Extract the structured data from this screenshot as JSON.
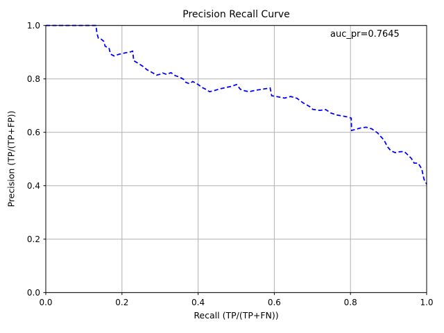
{
  "figure": {
    "background_color": "#ffffff",
    "spine_color": "#000000",
    "grid_color": "#b0b0b0",
    "text_color": "#000000"
  },
  "chart_data": {
    "type": "line",
    "title": "Precision Recall Curve",
    "xlabel": "Recall (TP/(TP+FN))",
    "ylabel": "Precision (TP/(TP+FP))",
    "annotation": "auc_pr=0.7645",
    "auc_pr": 0.7645,
    "xlim": [
      0.0,
      1.0
    ],
    "ylim": [
      0.0,
      1.0
    ],
    "xticks": [
      0.0,
      0.2,
      0.4,
      0.6,
      0.8,
      1.0
    ],
    "yticks": [
      0.0,
      0.2,
      0.4,
      0.6,
      0.8,
      1.0
    ],
    "xtick_labels": [
      "0.0",
      "0.2",
      "0.4",
      "0.6",
      "0.8",
      "1.0"
    ],
    "ytick_labels": [
      "0.0",
      "0.2",
      "0.4",
      "0.6",
      "0.8",
      "1.0"
    ],
    "grid": true,
    "legend": "none",
    "series": [
      {
        "name": "precision_recall",
        "color": "#0000ff",
        "linestyle": "dashed",
        "points": [
          [
            0.0,
            1.0
          ],
          [
            0.132,
            1.0
          ],
          [
            0.134,
            0.972
          ],
          [
            0.138,
            0.952
          ],
          [
            0.146,
            0.948
          ],
          [
            0.152,
            0.941
          ],
          [
            0.156,
            0.922
          ],
          [
            0.166,
            0.916
          ],
          [
            0.17,
            0.893
          ],
          [
            0.179,
            0.886
          ],
          [
            0.192,
            0.892
          ],
          [
            0.207,
            0.897
          ],
          [
            0.222,
            0.901
          ],
          [
            0.228,
            0.904
          ],
          [
            0.231,
            0.868
          ],
          [
            0.243,
            0.858
          ],
          [
            0.256,
            0.846
          ],
          [
            0.266,
            0.834
          ],
          [
            0.278,
            0.825
          ],
          [
            0.291,
            0.814
          ],
          [
            0.299,
            0.817
          ],
          [
            0.307,
            0.822
          ],
          [
            0.317,
            0.817
          ],
          [
            0.329,
            0.823
          ],
          [
            0.34,
            0.812
          ],
          [
            0.351,
            0.807
          ],
          [
            0.362,
            0.798
          ],
          [
            0.368,
            0.787
          ],
          [
            0.377,
            0.782
          ],
          [
            0.386,
            0.79
          ],
          [
            0.395,
            0.783
          ],
          [
            0.402,
            0.777
          ],
          [
            0.41,
            0.768
          ],
          [
            0.42,
            0.761
          ],
          [
            0.43,
            0.752
          ],
          [
            0.444,
            0.757
          ],
          [
            0.459,
            0.763
          ],
          [
            0.474,
            0.768
          ],
          [
            0.488,
            0.772
          ],
          [
            0.501,
            0.779
          ],
          [
            0.511,
            0.761
          ],
          [
            0.523,
            0.755
          ],
          [
            0.534,
            0.752
          ],
          [
            0.549,
            0.757
          ],
          [
            0.563,
            0.76
          ],
          [
            0.577,
            0.763
          ],
          [
            0.589,
            0.766
          ],
          [
            0.593,
            0.737
          ],
          [
            0.609,
            0.733
          ],
          [
            0.627,
            0.728
          ],
          [
            0.643,
            0.734
          ],
          [
            0.66,
            0.727
          ],
          [
            0.668,
            0.718
          ],
          [
            0.676,
            0.71
          ],
          [
            0.686,
            0.702
          ],
          [
            0.694,
            0.695
          ],
          [
            0.701,
            0.686
          ],
          [
            0.719,
            0.682
          ],
          [
            0.735,
            0.685
          ],
          [
            0.749,
            0.672
          ],
          [
            0.764,
            0.665
          ],
          [
            0.779,
            0.661
          ],
          [
            0.794,
            0.657
          ],
          [
            0.802,
            0.653
          ],
          [
            0.803,
            0.607
          ],
          [
            0.812,
            0.61
          ],
          [
            0.826,
            0.616
          ],
          [
            0.841,
            0.619
          ],
          [
            0.856,
            0.613
          ],
          [
            0.871,
            0.598
          ],
          [
            0.879,
            0.585
          ],
          [
            0.888,
            0.571
          ],
          [
            0.897,
            0.546
          ],
          [
            0.906,
            0.531
          ],
          [
            0.917,
            0.524
          ],
          [
            0.929,
            0.527
          ],
          [
            0.941,
            0.528
          ],
          [
            0.951,
            0.515
          ],
          [
            0.96,
            0.502
          ],
          [
            0.967,
            0.485
          ],
          [
            0.978,
            0.484
          ],
          [
            0.987,
            0.463
          ],
          [
            0.993,
            0.424
          ],
          [
            1.0,
            0.406
          ]
        ]
      }
    ]
  }
}
